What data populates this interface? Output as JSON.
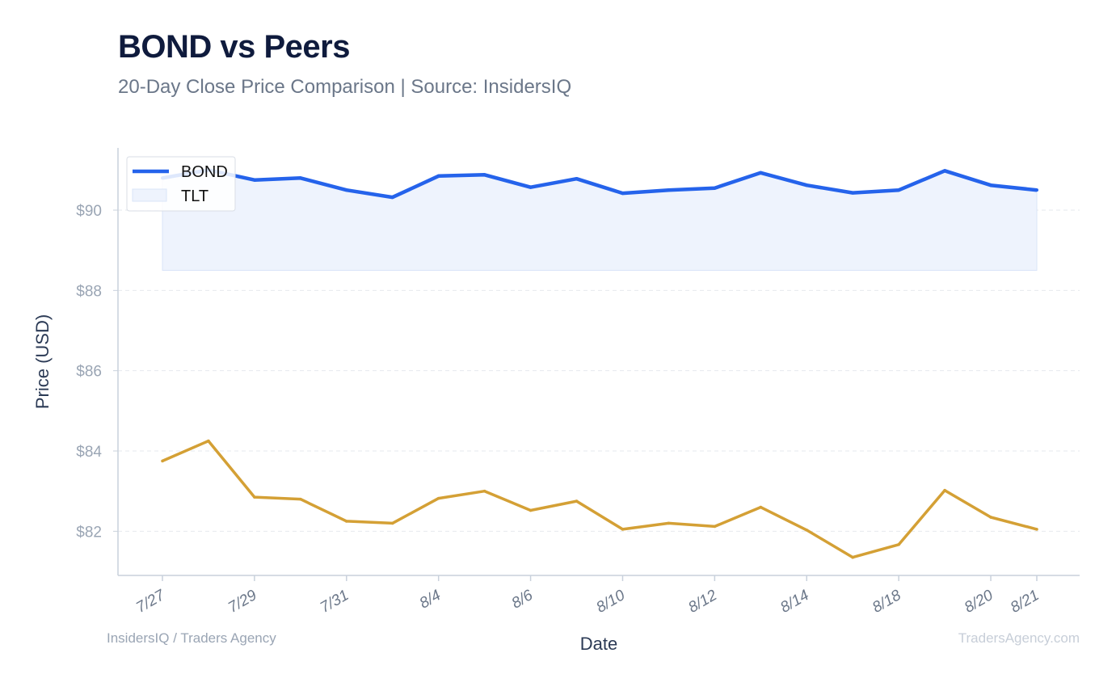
{
  "header": {
    "title": "BOND vs Peers",
    "subtitle": "20-Day Close Price Comparison | Source: InsidersIQ"
  },
  "footer": {
    "left": "InsidersIQ / Traders Agency",
    "right": "TradersAgency.com"
  },
  "colors": {
    "bond": "#2563eb",
    "tlt_fill": "#eef3fd",
    "tlt_band_edge": "#d9e4f8",
    "peer": "#d4a035",
    "grid": "#e6e9ee",
    "axis": "#c9d1dc"
  },
  "chart_data": {
    "type": "line",
    "xlabel": "Date",
    "ylabel": "Price (USD)",
    "ylim": [
      80.9,
      91.55
    ],
    "yticks": [
      82,
      84,
      86,
      88,
      90
    ],
    "ytick_labels": [
      "$82",
      "$84",
      "$86",
      "$88",
      "$90"
    ],
    "grid": "horizontal",
    "legend": "top-left",
    "x": [
      "7/27",
      "7/28",
      "7/29",
      "7/30",
      "7/31",
      "8/3",
      "8/4",
      "8/5",
      "8/6",
      "8/7",
      "8/10",
      "8/11",
      "8/12",
      "8/13",
      "8/14",
      "8/17",
      "8/18",
      "8/19",
      "8/20",
      "8/21"
    ],
    "xtick_labels": [
      "7/27",
      "7/29",
      "7/31",
      "8/4",
      "8/6",
      "8/10",
      "8/12",
      "8/14",
      "8/18",
      "8/20",
      "8/21"
    ],
    "xtick_indices": [
      0,
      2,
      4,
      6,
      8,
      10,
      12,
      14,
      16,
      18,
      19
    ],
    "series": [
      {
        "name": "BOND",
        "style": "line",
        "values": [
          90.8,
          91.0,
          90.75,
          90.8,
          90.5,
          90.32,
          90.85,
          90.88,
          90.57,
          90.78,
          90.42,
          90.5,
          90.55,
          90.93,
          90.62,
          90.43,
          90.5,
          90.98,
          90.62,
          90.5
        ]
      },
      {
        "name": "TLT",
        "style": "band",
        "low": 88.5,
        "high": [
          90.8,
          91.0,
          90.75,
          90.8,
          90.5,
          90.32,
          90.85,
          90.88,
          90.57,
          90.78,
          90.42,
          90.5,
          90.55,
          90.93,
          90.62,
          90.43,
          90.5,
          90.98,
          90.62,
          90.5
        ]
      },
      {
        "name": "",
        "style": "line",
        "values": [
          83.75,
          84.25,
          82.85,
          82.8,
          82.25,
          82.2,
          82.82,
          83.0,
          82.52,
          82.75,
          82.05,
          82.2,
          82.12,
          82.6,
          82.03,
          81.35,
          81.67,
          83.02,
          82.35,
          82.05
        ]
      }
    ]
  }
}
